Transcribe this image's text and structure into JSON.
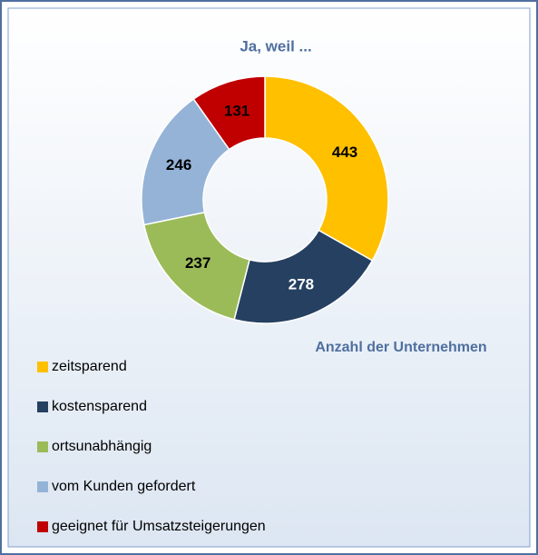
{
  "chart_data": {
    "type": "pie",
    "title": "Ja, weil ...",
    "annotation": "Anzahl der Unternehmen",
    "categories": [
      "zeitsparend",
      "kostensparend",
      "ortsunabhängig",
      "vom Kunden gefordert",
      "geeignet für Umsatzsteigerungen"
    ],
    "values": [
      443,
      278,
      237,
      246,
      131
    ],
    "colors": [
      "#ffc000",
      "#254061",
      "#9bbb59",
      "#95b3d7",
      "#c00000"
    ],
    "donut": true
  }
}
